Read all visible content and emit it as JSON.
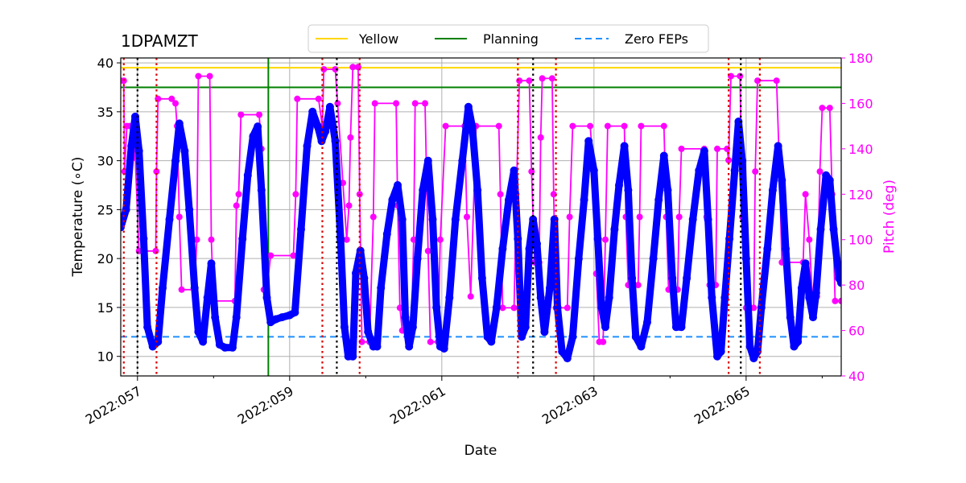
{
  "chart_data": {
    "type": "line",
    "title": "1DPAMZT",
    "xlabel": "Date",
    "ylabel": "Temperature ($^\\circ$C)",
    "ylabel_display": "Temperature (∘C)",
    "y2label": "Pitch (deg)",
    "xlim": [
      56.78,
      66.25
    ],
    "ylim": [
      8,
      40.5
    ],
    "y2lim": [
      40,
      180
    ],
    "grid": true,
    "legend_position": "top-center",
    "x_ticks": [
      57,
      59,
      61,
      63,
      65
    ],
    "x_tick_labels": [
      "2022:057",
      "2022:059",
      "2022:061",
      "2022:063",
      "2022:065"
    ],
    "y_ticks": [
      10,
      15,
      20,
      25,
      30,
      35,
      40
    ],
    "y_tick_labels": [
      "10",
      "15",
      "20",
      "25",
      "30",
      "35",
      "40"
    ],
    "y2_ticks": [
      40,
      60,
      80,
      100,
      120,
      140,
      160,
      180
    ],
    "y2_tick_labels": [
      "40",
      "60",
      "80",
      "100",
      "120",
      "140",
      "160",
      "180"
    ],
    "colors": {
      "temperature": "#0000ff",
      "pitch": "#ff00ff",
      "yellow_limit": "#ffd700",
      "planning_limit": "#008000",
      "zero_feps": "#1e90ff",
      "red_marker": "#dd0000",
      "black_marker": "#000000"
    },
    "legend": [
      {
        "label": "Yellow",
        "style": "solid",
        "color": "#ffd700"
      },
      {
        "label": "Planning",
        "style": "solid",
        "color": "#008000"
      },
      {
        "label": "Zero FEPs",
        "style": "dashed",
        "color": "#1e90ff"
      }
    ],
    "hlines": [
      {
        "name": "Yellow",
        "y": 39.5
      },
      {
        "name": "Planning",
        "y": 37.5
      },
      {
        "name": "Zero FEPs",
        "y": 12.0
      }
    ],
    "planning_vline_x": 58.72,
    "red_dotted_vlines": [
      56.82,
      57.25,
      59.43,
      59.92,
      62.0,
      62.5,
      64.77,
      65.18
    ],
    "black_dotted_vlines": [
      57.0,
      59.62,
      62.2,
      64.93
    ],
    "temperature_series": [
      [
        56.78,
        23.2
      ],
      [
        56.85,
        25.0
      ],
      [
        56.92,
        31.5
      ],
      [
        56.97,
        34.5
      ],
      [
        57.02,
        31.0
      ],
      [
        57.08,
        22.0
      ],
      [
        57.13,
        13.0
      ],
      [
        57.2,
        11.0
      ],
      [
        57.27,
        11.5
      ],
      [
        57.33,
        17.0
      ],
      [
        57.42,
        24.0
      ],
      [
        57.5,
        30.0
      ],
      [
        57.55,
        33.8
      ],
      [
        57.62,
        31.0
      ],
      [
        57.68,
        25.0
      ],
      [
        57.75,
        17.0
      ],
      [
        57.8,
        12.5
      ],
      [
        57.86,
        11.5
      ],
      [
        57.92,
        16.0
      ],
      [
        57.97,
        19.5
      ],
      [
        58.02,
        14.0
      ],
      [
        58.08,
        11.2
      ],
      [
        58.15,
        10.9
      ],
      [
        58.25,
        10.9
      ],
      [
        58.3,
        14.0
      ],
      [
        58.38,
        22.0
      ],
      [
        58.45,
        28.5
      ],
      [
        58.52,
        32.5
      ],
      [
        58.58,
        33.5
      ],
      [
        58.63,
        27.0
      ],
      [
        58.7,
        16.0
      ],
      [
        58.75,
        13.5
      ],
      [
        58.82,
        13.8
      ],
      [
        58.9,
        14.0
      ],
      [
        59.0,
        14.2
      ],
      [
        59.07,
        14.5
      ],
      [
        59.15,
        23.0
      ],
      [
        59.23,
        31.5
      ],
      [
        59.3,
        35.0
      ],
      [
        59.37,
        33.5
      ],
      [
        59.42,
        32.0
      ],
      [
        59.47,
        33.0
      ],
      [
        59.53,
        35.5
      ],
      [
        59.6,
        32.0
      ],
      [
        59.67,
        22.0
      ],
      [
        59.72,
        13.0
      ],
      [
        59.77,
        10.0
      ],
      [
        59.83,
        10.0
      ],
      [
        59.87,
        18.5
      ],
      [
        59.93,
        20.8
      ],
      [
        59.98,
        18.0
      ],
      [
        60.03,
        12.5
      ],
      [
        60.1,
        11.0
      ],
      [
        60.15,
        11.0
      ],
      [
        60.2,
        17.0
      ],
      [
        60.28,
        22.5
      ],
      [
        60.35,
        26.0
      ],
      [
        60.42,
        27.5
      ],
      [
        60.48,
        24.0
      ],
      [
        60.52,
        14.0
      ],
      [
        60.57,
        11.0
      ],
      [
        60.62,
        13.0
      ],
      [
        60.68,
        20.0
      ],
      [
        60.75,
        27.0
      ],
      [
        60.82,
        30.0
      ],
      [
        60.88,
        24.0
      ],
      [
        60.93,
        15.0
      ],
      [
        60.98,
        11.0
      ],
      [
        61.03,
        10.8
      ],
      [
        61.1,
        16.0
      ],
      [
        61.18,
        24.0
      ],
      [
        61.27,
        30.0
      ],
      [
        61.35,
        35.5
      ],
      [
        61.4,
        33.5
      ],
      [
        61.47,
        27.0
      ],
      [
        61.53,
        18.0
      ],
      [
        61.6,
        12.0
      ],
      [
        61.65,
        11.5
      ],
      [
        61.72,
        15.0
      ],
      [
        61.8,
        21.0
      ],
      [
        61.88,
        26.0
      ],
      [
        61.95,
        29.0
      ],
      [
        62.0,
        22.0
      ],
      [
        62.05,
        12.0
      ],
      [
        62.1,
        13.0
      ],
      [
        62.15,
        21.0
      ],
      [
        62.2,
        24.0
      ],
      [
        62.25,
        21.5
      ],
      [
        62.3,
        16.0
      ],
      [
        62.35,
        12.5
      ],
      [
        62.42,
        17.0
      ],
      [
        62.48,
        24.0
      ],
      [
        62.52,
        15.0
      ],
      [
        62.58,
        10.5
      ],
      [
        62.65,
        9.8
      ],
      [
        62.72,
        12.0
      ],
      [
        62.8,
        20.0
      ],
      [
        62.87,
        26.0
      ],
      [
        62.93,
        32.0
      ],
      [
        63.0,
        29.0
      ],
      [
        63.05,
        22.0
      ],
      [
        63.1,
        15.0
      ],
      [
        63.15,
        13.0
      ],
      [
        63.2,
        16.0
      ],
      [
        63.27,
        23.0
      ],
      [
        63.33,
        27.5
      ],
      [
        63.4,
        31.5
      ],
      [
        63.45,
        27.0
      ],
      [
        63.5,
        18.0
      ],
      [
        63.55,
        12.0
      ],
      [
        63.62,
        11.0
      ],
      [
        63.7,
        13.5
      ],
      [
        63.78,
        20.0
      ],
      [
        63.85,
        26.0
      ],
      [
        63.92,
        30.5
      ],
      [
        63.97,
        27.0
      ],
      [
        64.03,
        18.0
      ],
      [
        64.08,
        13.0
      ],
      [
        64.15,
        13.0
      ],
      [
        64.22,
        18.0
      ],
      [
        64.3,
        24.0
      ],
      [
        64.38,
        29.0
      ],
      [
        64.45,
        31.0
      ],
      [
        64.5,
        24.0
      ],
      [
        64.55,
        16.0
      ],
      [
        64.62,
        10.0
      ],
      [
        64.67,
        10.5
      ],
      [
        64.72,
        16.0
      ],
      [
        64.78,
        22.0
      ],
      [
        64.85,
        29.0
      ],
      [
        64.9,
        34.0
      ],
      [
        64.95,
        30.0
      ],
      [
        65.0,
        20.0
      ],
      [
        65.05,
        11.0
      ],
      [
        65.1,
        9.8
      ],
      [
        65.15,
        10.5
      ],
      [
        65.2,
        15.0
      ],
      [
        65.28,
        21.0
      ],
      [
        65.35,
        27.0
      ],
      [
        65.42,
        31.5
      ],
      [
        65.47,
        28.0
      ],
      [
        65.52,
        21.0
      ],
      [
        65.58,
        14.0
      ],
      [
        65.63,
        11.0
      ],
      [
        65.68,
        11.5
      ],
      [
        65.73,
        17.0
      ],
      [
        65.78,
        19.5
      ],
      [
        65.83,
        16.0
      ],
      [
        65.88,
        14.0
      ],
      [
        65.92,
        16.5
      ],
      [
        65.98,
        23.0
      ],
      [
        66.05,
        28.5
      ],
      [
        66.1,
        28.0
      ],
      [
        66.15,
        23.0
      ],
      [
        66.22,
        18.0
      ],
      [
        66.25,
        17.5
      ]
    ],
    "pitch_series": [
      [
        56.78,
        170
      ],
      [
        56.82,
        170
      ],
      [
        56.83,
        130
      ],
      [
        56.86,
        150
      ],
      [
        56.9,
        150
      ],
      [
        56.95,
        150
      ],
      [
        56.97,
        136
      ],
      [
        57.02,
        95
      ],
      [
        57.24,
        95
      ],
      [
        57.25,
        130
      ],
      [
        57.27,
        162
      ],
      [
        57.45,
        162
      ],
      [
        57.5,
        160
      ],
      [
        57.52,
        150
      ],
      [
        57.55,
        110
      ],
      [
        57.58,
        78
      ],
      [
        57.75,
        78
      ],
      [
        57.78,
        100
      ],
      [
        57.8,
        172
      ],
      [
        57.95,
        172
      ],
      [
        57.97,
        100
      ],
      [
        58.0,
        73
      ],
      [
        58.28,
        73
      ],
      [
        58.3,
        115
      ],
      [
        58.33,
        120
      ],
      [
        58.36,
        155
      ],
      [
        58.6,
        155
      ],
      [
        58.63,
        140
      ],
      [
        58.66,
        78
      ],
      [
        58.7,
        78
      ],
      [
        58.75,
        93
      ],
      [
        59.05,
        93
      ],
      [
        59.08,
        120
      ],
      [
        59.1,
        162
      ],
      [
        59.38,
        162
      ],
      [
        59.43,
        150
      ],
      [
        59.45,
        175
      ],
      [
        59.6,
        175
      ],
      [
        59.63,
        160
      ],
      [
        59.7,
        125
      ],
      [
        59.75,
        100
      ],
      [
        59.78,
        115
      ],
      [
        59.8,
        145
      ],
      [
        59.83,
        176
      ],
      [
        59.9,
        176
      ],
      [
        59.92,
        120
      ],
      [
        59.95,
        55
      ],
      [
        60.05,
        55
      ],
      [
        60.1,
        110
      ],
      [
        60.12,
        160
      ],
      [
        60.4,
        160
      ],
      [
        60.42,
        115
      ],
      [
        60.45,
        70
      ],
      [
        60.48,
        60
      ],
      [
        60.6,
        60
      ],
      [
        60.63,
        100
      ],
      [
        60.65,
        160
      ],
      [
        60.78,
        160
      ],
      [
        60.82,
        95
      ],
      [
        60.85,
        55
      ],
      [
        60.95,
        55
      ],
      [
        60.98,
        100
      ],
      [
        61.05,
        150
      ],
      [
        61.3,
        150
      ],
      [
        61.33,
        110
      ],
      [
        61.38,
        75
      ],
      [
        61.45,
        150
      ],
      [
        61.75,
        150
      ],
      [
        61.77,
        120
      ],
      [
        61.8,
        70
      ],
      [
        61.95,
        70
      ],
      [
        61.98,
        120
      ],
      [
        62.02,
        170
      ],
      [
        62.15,
        170
      ],
      [
        62.18,
        130
      ],
      [
        62.22,
        90
      ],
      [
        62.28,
        90
      ],
      [
        62.3,
        145
      ],
      [
        62.32,
        171
      ],
      [
        62.45,
        171
      ],
      [
        62.47,
        120
      ],
      [
        62.5,
        70
      ],
      [
        62.65,
        70
      ],
      [
        62.68,
        110
      ],
      [
        62.72,
        150
      ],
      [
        62.95,
        150
      ],
      [
        63.0,
        130
      ],
      [
        63.03,
        85
      ],
      [
        63.07,
        55
      ],
      [
        63.12,
        55
      ],
      [
        63.15,
        100
      ],
      [
        63.18,
        150
      ],
      [
        63.4,
        150
      ],
      [
        63.42,
        110
      ],
      [
        63.45,
        80
      ],
      [
        63.58,
        80
      ],
      [
        63.6,
        110
      ],
      [
        63.62,
        150
      ],
      [
        63.92,
        150
      ],
      [
        63.95,
        110
      ],
      [
        63.98,
        78
      ],
      [
        64.1,
        78
      ],
      [
        64.12,
        110
      ],
      [
        64.15,
        140
      ],
      [
        64.45,
        140
      ],
      [
        64.48,
        110
      ],
      [
        64.52,
        80
      ],
      [
        64.6,
        80
      ],
      [
        64.62,
        140
      ],
      [
        64.75,
        140
      ],
      [
        64.77,
        135
      ],
      [
        64.8,
        172
      ],
      [
        64.92,
        172
      ],
      [
        64.95,
        110
      ],
      [
        65.0,
        70
      ],
      [
        65.1,
        70
      ],
      [
        65.12,
        130
      ],
      [
        65.15,
        170
      ],
      [
        65.4,
        170
      ],
      [
        65.43,
        140
      ],
      [
        65.47,
        90
      ],
      [
        65.75,
        90
      ],
      [
        65.78,
        120
      ],
      [
        65.83,
        100
      ],
      [
        65.87,
        75
      ],
      [
        65.93,
        75
      ],
      [
        65.97,
        130
      ],
      [
        66.0,
        158
      ],
      [
        66.1,
        158
      ],
      [
        66.13,
        120
      ],
      [
        66.17,
        73
      ],
      [
        66.25,
        73
      ]
    ]
  }
}
